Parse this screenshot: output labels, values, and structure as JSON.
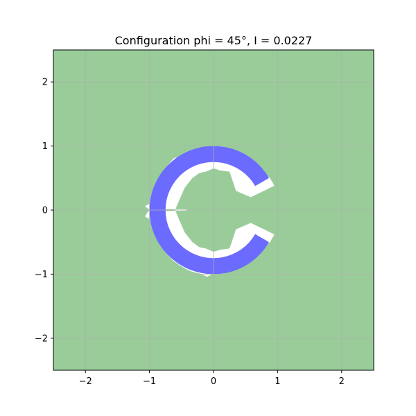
{
  "chart_data": {
    "type": "area",
    "title": "Configuration phi = 45°, I = 0.0227",
    "xlabel": "",
    "ylabel": "",
    "xlim": [
      -2.5,
      2.5
    ],
    "ylim": [
      -2.5,
      2.5
    ],
    "grid": true,
    "xticks": [
      -2,
      -1,
      0,
      1,
      2
    ],
    "yticks": [
      -2,
      -1,
      0,
      1,
      2
    ],
    "xtick_labels": [
      "−2",
      "−1",
      "0",
      "1",
      "2"
    ],
    "ytick_labels": [
      "−2",
      "−1",
      "0",
      "1",
      "2"
    ],
    "colors": {
      "background_region": "#99cc99",
      "ring": "#6b6bff",
      "cavity": "#ffffff",
      "grid": "#b0b0b0"
    },
    "ring": {
      "center": [
        0,
        0
      ],
      "inner_radius": 0.75,
      "outer_radius": 1.0,
      "gap_angle_deg": [
        -30,
        30
      ]
    },
    "cavity_outline": [
      [
        0.0,
        1.0
      ],
      [
        -0.1,
        0.99
      ],
      [
        -0.22,
        0.97
      ],
      [
        -0.3,
        0.93
      ],
      [
        -0.42,
        0.91
      ],
      [
        -0.52,
        0.84
      ],
      [
        -0.62,
        0.81
      ],
      [
        -0.7,
        0.72
      ],
      [
        -0.76,
        0.64
      ],
      [
        -0.82,
        0.55
      ],
      [
        -0.86,
        0.48
      ],
      [
        -0.9,
        0.38
      ],
      [
        -0.93,
        0.28
      ],
      [
        -0.97,
        0.2
      ],
      [
        -1.0,
        0.1
      ],
      [
        -1.07,
        0.06
      ],
      [
        -1.02,
        0.02
      ],
      [
        -0.42,
        0.01
      ],
      [
        -0.42,
        -0.01
      ],
      [
        -1.02,
        -0.02
      ],
      [
        -1.07,
        -0.1
      ],
      [
        -1.0,
        -0.14
      ],
      [
        -0.96,
        -0.22
      ],
      [
        -0.94,
        -0.3
      ],
      [
        -0.9,
        -0.4
      ],
      [
        -0.86,
        -0.48
      ],
      [
        -0.82,
        -0.55
      ],
      [
        -0.77,
        -0.64
      ],
      [
        -0.7,
        -0.72
      ],
      [
        -0.62,
        -0.8
      ],
      [
        -0.53,
        -0.86
      ],
      [
        -0.43,
        -0.92
      ],
      [
        -0.34,
        -0.96
      ],
      [
        -0.22,
        -0.99
      ],
      [
        -0.1,
        -1.04
      ],
      [
        0.0,
        -0.99
      ],
      [
        0.12,
        -1.0
      ],
      [
        0.22,
        -0.96
      ],
      [
        0.35,
        -0.9
      ],
      [
        0.45,
        -0.85
      ],
      [
        0.56,
        -0.79
      ],
      [
        0.66,
        -0.7
      ],
      [
        0.76,
        -0.62
      ],
      [
        0.88,
        -0.5
      ],
      [
        0.95,
        -0.38
      ],
      [
        0.58,
        -0.2
      ],
      [
        0.35,
        -0.3
      ],
      [
        0.25,
        -0.6
      ],
      [
        0.1,
        -0.62
      ],
      [
        0.0,
        -0.65
      ],
      [
        -0.12,
        -0.6
      ],
      [
        -0.22,
        -0.58
      ],
      [
        -0.33,
        -0.5
      ],
      [
        -0.45,
        -0.35
      ],
      [
        -0.55,
        -0.12
      ],
      [
        -0.6,
        0.0
      ],
      [
        -0.55,
        0.12
      ],
      [
        -0.45,
        0.35
      ],
      [
        -0.33,
        0.5
      ],
      [
        -0.22,
        0.58
      ],
      [
        -0.12,
        0.6
      ],
      [
        0.0,
        0.65
      ],
      [
        0.1,
        0.62
      ],
      [
        0.25,
        0.6
      ],
      [
        0.35,
        0.3
      ],
      [
        0.58,
        0.2
      ],
      [
        0.95,
        0.38
      ],
      [
        0.88,
        0.5
      ],
      [
        0.76,
        0.62
      ],
      [
        0.66,
        0.7
      ],
      [
        0.56,
        0.79
      ],
      [
        0.45,
        0.85
      ],
      [
        0.35,
        0.9
      ],
      [
        0.22,
        0.96
      ],
      [
        0.12,
        1.0
      ]
    ]
  }
}
